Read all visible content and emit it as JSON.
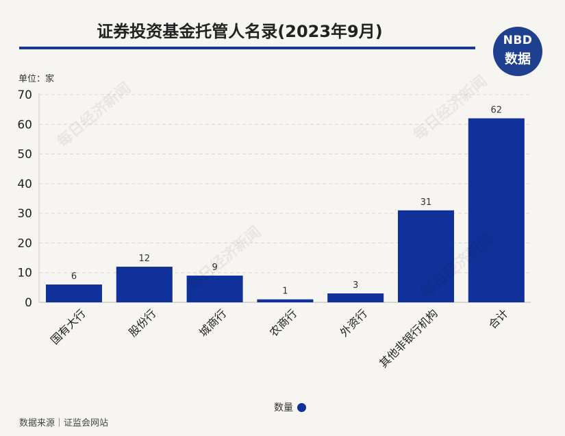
{
  "header": {
    "title": "证券投资基金托管人名录(2023年9月)",
    "logo_line1": "NBD",
    "logo_line2": "数据"
  },
  "unit_label": "单位：家",
  "legend": {
    "label": "数量",
    "color": "#0f3199"
  },
  "source": "数据来源｜证监会网站",
  "watermark_text": "每日经济新闻",
  "chart_data": {
    "type": "bar",
    "title": "证券投资基金托管人名录(2023年9月)",
    "categories": [
      "国有大行",
      "股份行",
      "城商行",
      "农商行",
      "外资行",
      "其他非银行机构",
      "合计"
    ],
    "series": [
      {
        "name": "数量",
        "values": [
          6,
          12,
          9,
          1,
          3,
          31,
          62
        ]
      }
    ],
    "ylim": [
      0,
      70
    ],
    "yticks": [
      0,
      10,
      20,
      30,
      40,
      50,
      60,
      70
    ],
    "grid": true,
    "legend_position": "bottom",
    "bar_color": "#0f3199"
  }
}
